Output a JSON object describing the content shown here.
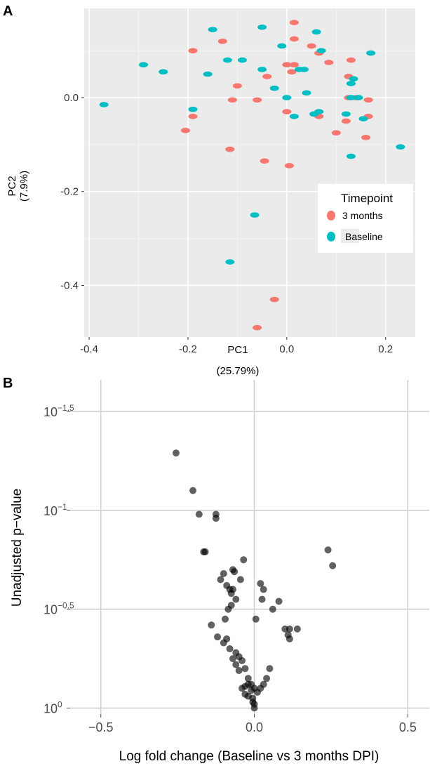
{
  "panel_labels": {
    "a": "A",
    "b": "B"
  },
  "chart_data": [
    {
      "type": "scatter",
      "title": "",
      "xlabel": "PC1",
      "xlabel_sub": "(25.79%)",
      "ylabel": "PC2",
      "ylabel_sub": "(7.9%)",
      "xlim": [
        -0.41,
        0.26
      ],
      "ylim": [
        -0.51,
        0.19
      ],
      "xticks": [
        -0.4,
        -0.2,
        0.0,
        0.2
      ],
      "xtick_labels": [
        "-0.4",
        "-0.2",
        "0.0",
        "0.2"
      ],
      "yticks": [
        0.0,
        -0.2,
        -0.4
      ],
      "ytick_labels": [
        "0.0",
        "-0.2",
        "-0.4"
      ],
      "grid": true,
      "legend": {
        "title": "Timepoint",
        "placement": "right",
        "entries": [
          "3 months",
          "Baseline"
        ]
      },
      "colors": {
        "3 months": "#f8766d",
        "Baseline": "#00bfc4"
      },
      "series": [
        {
          "name": "3 months",
          "x": [
            0.015,
            0.015,
            0.05,
            0.065,
            0.085,
            -0.19,
            -0.13,
            0.0,
            0.015,
            0.13,
            0.125,
            -0.1,
            -0.04,
            0.01,
            -0.11,
            -0.06,
            0.0,
            0.065,
            0.14,
            0.165,
            0.125,
            0.12,
            0.165,
            -0.19,
            -0.205,
            0.1,
            0.16,
            -0.115,
            -0.045,
            0.005,
            -0.025,
            -0.06
          ],
          "y": [
            0.16,
            0.125,
            0.11,
            0.095,
            0.075,
            0.1,
            0.12,
            0.07,
            0.07,
            0.08,
            0.045,
            0.025,
            0.045,
            0.055,
            -0.005,
            -0.005,
            -0.03,
            -0.04,
            0.0,
            -0.005,
            0.0,
            -0.05,
            -0.04,
            -0.04,
            -0.07,
            -0.075,
            -0.085,
            -0.11,
            -0.135,
            -0.145,
            -0.43,
            -0.49
          ]
        },
        {
          "name": "Baseline",
          "x": [
            -0.05,
            -0.15,
            0.06,
            -0.01,
            0.07,
            0.17,
            -0.29,
            -0.25,
            -0.09,
            -0.12,
            -0.05,
            0.025,
            0.035,
            -0.16,
            0.135,
            0.13,
            -0.025,
            0.04,
            0.0,
            -0.37,
            0.13,
            0.145,
            0.065,
            0.055,
            -0.19,
            0.12,
            0.015,
            0.155,
            0.13,
            0.23,
            -0.065,
            -0.115
          ],
          "y": [
            0.15,
            0.145,
            0.14,
            0.11,
            0.1,
            0.095,
            0.07,
            0.055,
            0.08,
            0.08,
            0.06,
            0.06,
            0.06,
            0.05,
            0.04,
            0.03,
            0.02,
            0.01,
            0.0,
            -0.015,
            0.0,
            0.0,
            -0.03,
            -0.035,
            -0.025,
            -0.035,
            -0.04,
            -0.045,
            -0.125,
            -0.105,
            -0.25,
            -0.35
          ]
        }
      ]
    },
    {
      "type": "scatter",
      "title": "",
      "xlabel": "Log fold change (Baseline vs 3 months DPI)",
      "ylabel": "Unadjusted p−value",
      "y_scale": "log10-reversed",
      "xlim": [
        -0.6,
        0.57
      ],
      "ylim_exponent": [
        -1.66,
        0.03
      ],
      "xticks": [
        -0.5,
        0.0,
        0.5
      ],
      "xtick_labels": [
        "−0.5",
        "0.0",
        "0.5"
      ],
      "ytick_exponents": [
        -1.5,
        -1,
        -0.5,
        0
      ],
      "ytick_base": "10",
      "ytick_exp_labels": [
        "−1.5",
        "−1",
        "−0.5",
        "0"
      ],
      "grid": true,
      "marker_color": "#000000",
      "x": [
        -0.255,
        -0.2,
        -0.18,
        -0.125,
        -0.125,
        -0.16,
        -0.165,
        -0.07,
        -0.065,
        -0.035,
        -0.1,
        -0.11,
        -0.09,
        -0.08,
        -0.07,
        -0.06,
        -0.075,
        -0.085,
        -0.095,
        -0.14,
        -0.12,
        -0.1,
        -0.09,
        -0.08,
        -0.06,
        -0.05,
        -0.04,
        -0.03,
        -0.02,
        -0.01,
        0.0,
        0.01,
        0.02,
        0.03,
        0.04,
        0.05,
        0.06,
        0.08,
        0.1,
        0.11,
        0.115,
        0.14,
        0.115,
        0.24,
        0.255,
        -0.04,
        -0.03,
        -0.02,
        -0.01,
        -0.005,
        0.0,
        -0.02,
        -0.03,
        -0.07,
        -0.06,
        -0.05,
        0.02,
        0.03,
        0.025,
        0.005,
        -0.045,
        -0.075,
        0.0,
        -0.005
      ],
      "p_exp": [
        -1.29,
        -1.1,
        -0.98,
        -0.98,
        -0.96,
        -0.79,
        -0.79,
        -0.7,
        -0.69,
        -0.75,
        -0.68,
        -0.65,
        -0.62,
        -0.6,
        -0.6,
        -0.55,
        -0.52,
        -0.5,
        -0.45,
        -0.42,
        -0.36,
        -0.33,
        -0.35,
        -0.3,
        -0.28,
        -0.26,
        -0.24,
        -0.2,
        -0.15,
        -0.12,
        -0.1,
        -0.08,
        -0.1,
        -0.12,
        -0.15,
        -0.2,
        -0.5,
        -0.54,
        -0.4,
        -0.37,
        -0.4,
        -0.4,
        -0.35,
        -0.8,
        -0.72,
        -0.1,
        -0.11,
        -0.12,
        -0.09,
        -0.05,
        -0.02,
        -0.06,
        -0.07,
        -0.25,
        -0.22,
        -0.19,
        -0.63,
        -0.6,
        -0.55,
        -0.45,
        -0.65,
        -0.58,
        -0.0,
        -0.03
      ]
    }
  ]
}
